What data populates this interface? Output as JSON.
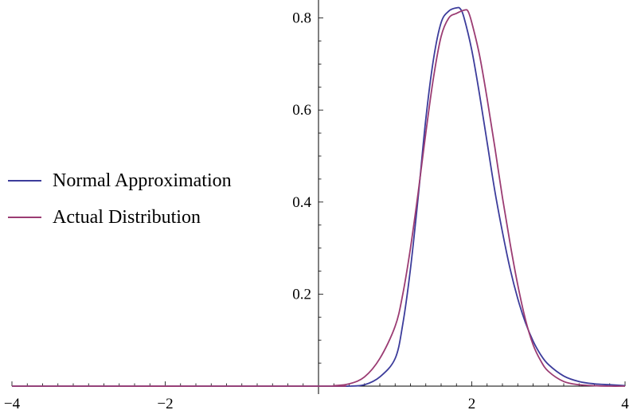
{
  "chart_data": {
    "type": "line",
    "title": "",
    "xlabel": "",
    "ylabel": "",
    "xlim": [
      -4,
      4
    ],
    "ylim": [
      0,
      0.84
    ],
    "x_ticks": [
      {
        "value": -4,
        "label": "−4"
      },
      {
        "value": -2,
        "label": "−2"
      },
      {
        "value": 2,
        "label": "2"
      },
      {
        "value": 4,
        "label": "4"
      }
    ],
    "y_ticks": [
      {
        "value": 0.2,
        "label": "0.2"
      },
      {
        "value": 0.4,
        "label": "0.4"
      },
      {
        "value": 0.6,
        "label": "0.6"
      },
      {
        "value": 0.8,
        "label": "0.8"
      }
    ],
    "grid": false,
    "legend_position": "left",
    "series": [
      {
        "name": "Normal Approximation",
        "color": "#3c3c9b",
        "x": [
          -4.0,
          0.0,
          0.2,
          0.4,
          0.6,
          0.8,
          1.0,
          1.1,
          1.2,
          1.3,
          1.4,
          1.5,
          1.6,
          1.7,
          1.8,
          1.85,
          1.9,
          2.0,
          2.1,
          2.2,
          2.3,
          2.4,
          2.5,
          2.6,
          2.7,
          2.8,
          2.9,
          3.0,
          3.2,
          3.4,
          3.6,
          3.8,
          4.0
        ],
        "y": [
          0.0,
          0.0,
          0.0,
          0.0,
          0.003,
          0.02,
          0.06,
          0.135,
          0.255,
          0.41,
          0.58,
          0.71,
          0.79,
          0.815,
          0.822,
          0.82,
          0.8,
          0.73,
          0.635,
          0.53,
          0.425,
          0.335,
          0.255,
          0.19,
          0.138,
          0.098,
          0.068,
          0.047,
          0.022,
          0.01,
          0.005,
          0.003,
          0.001
        ]
      },
      {
        "name": "Actual Distribution",
        "color": "#9b3c73",
        "x": [
          -4.0,
          0.0,
          0.2,
          0.4,
          0.6,
          0.8,
          1.0,
          1.1,
          1.2,
          1.3,
          1.4,
          1.5,
          1.6,
          1.7,
          1.8,
          1.9,
          1.95,
          2.0,
          2.1,
          2.2,
          2.3,
          2.4,
          2.5,
          2.6,
          2.7,
          2.8,
          2.9,
          3.0,
          3.2,
          3.4,
          3.6,
          3.8,
          4.0
        ],
        "y": [
          0.0,
          0.0,
          0.001,
          0.005,
          0.02,
          0.06,
          0.13,
          0.2,
          0.3,
          0.42,
          0.55,
          0.67,
          0.76,
          0.8,
          0.81,
          0.817,
          0.815,
          0.79,
          0.72,
          0.625,
          0.52,
          0.41,
          0.31,
          0.22,
          0.145,
          0.09,
          0.055,
          0.032,
          0.01,
          0.003,
          0.001,
          0.0,
          0.0
        ]
      }
    ]
  }
}
